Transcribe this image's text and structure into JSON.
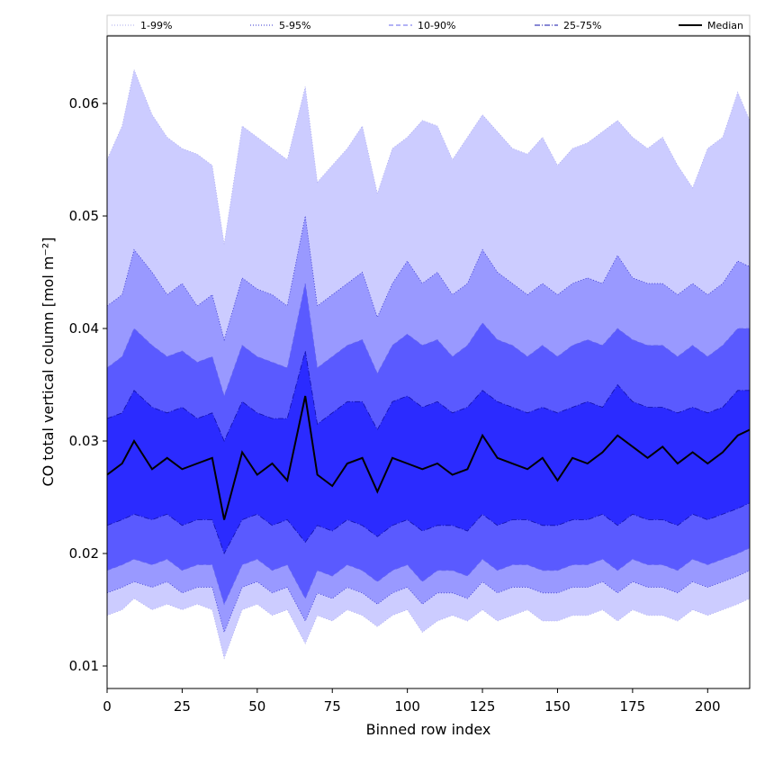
{
  "chart_data": {
    "type": "area",
    "xlabel": "Binned row index",
    "ylabel": "CO total vertical column [mol m⁻²]",
    "xlim": [
      0,
      214
    ],
    "ylim": [
      0.008,
      0.066
    ],
    "xticks": [
      0,
      25,
      50,
      75,
      100,
      125,
      150,
      175,
      200
    ],
    "yticks": [
      0.01,
      0.02,
      0.03,
      0.04,
      0.05,
      0.06
    ],
    "ytick_labels": [
      "0.01",
      "0.02",
      "0.03",
      "0.04",
      "0.05",
      "0.06"
    ],
    "grid": false,
    "legend_position": "top, spanning full width",
    "legend": [
      {
        "label": "1-99%",
        "style": "dotted",
        "color": "#aaaaee"
      },
      {
        "label": "5-95%",
        "style": "dotted",
        "color": "#3333cc"
      },
      {
        "label": "10-90%",
        "style": "dashed",
        "color": "#6666ee"
      },
      {
        "label": "25-75%",
        "style": "dashdot",
        "color": "#1111aa"
      },
      {
        "label": "Median",
        "style": "solid",
        "color": "#000000"
      }
    ],
    "band_colors": [
      "#ccccff",
      "#9999ff",
      "#5a5aff",
      "#2b2bff"
    ],
    "median_color": "#000000",
    "x_samples": [
      0,
      5,
      9,
      15,
      20,
      25,
      30,
      35,
      39,
      45,
      50,
      55,
      60,
      66,
      70,
      75,
      80,
      85,
      90,
      95,
      100,
      105,
      110,
      115,
      120,
      125,
      130,
      135,
      140,
      145,
      150,
      155,
      160,
      165,
      170,
      175,
      180,
      185,
      190,
      195,
      200,
      205,
      210,
      214
    ],
    "series": [
      {
        "name": "1-99%",
        "lower": [
          0.0145,
          0.015,
          0.016,
          0.015,
          0.0155,
          0.015,
          0.0155,
          0.015,
          0.0107,
          0.015,
          0.0155,
          0.0145,
          0.015,
          0.012,
          0.0145,
          0.014,
          0.015,
          0.0145,
          0.0135,
          0.0145,
          0.015,
          0.013,
          0.014,
          0.0145,
          0.014,
          0.015,
          0.014,
          0.0145,
          0.015,
          0.014,
          0.014,
          0.0145,
          0.0145,
          0.015,
          0.014,
          0.015,
          0.0145,
          0.0145,
          0.014,
          0.015,
          0.0145,
          0.015,
          0.0155,
          0.016
        ],
        "upper": [
          0.055,
          0.058,
          0.063,
          0.059,
          0.057,
          0.056,
          0.0555,
          0.0545,
          0.0475,
          0.058,
          0.057,
          0.056,
          0.055,
          0.0615,
          0.053,
          0.0545,
          0.056,
          0.058,
          0.052,
          0.056,
          0.057,
          0.0585,
          0.058,
          0.055,
          0.057,
          0.059,
          0.0575,
          0.056,
          0.0555,
          0.057,
          0.0545,
          0.056,
          0.0565,
          0.0575,
          0.0585,
          0.057,
          0.056,
          0.057,
          0.0545,
          0.0525,
          0.056,
          0.057,
          0.061,
          0.0585
        ]
      },
      {
        "name": "5-95%",
        "lower": [
          0.0165,
          0.017,
          0.0175,
          0.017,
          0.0175,
          0.0165,
          0.017,
          0.017,
          0.013,
          0.017,
          0.0175,
          0.0165,
          0.017,
          0.014,
          0.0165,
          0.016,
          0.017,
          0.0165,
          0.0155,
          0.0165,
          0.017,
          0.0155,
          0.0165,
          0.0165,
          0.016,
          0.0175,
          0.0165,
          0.017,
          0.017,
          0.0165,
          0.0165,
          0.017,
          0.017,
          0.0175,
          0.0165,
          0.0175,
          0.017,
          0.017,
          0.0165,
          0.0175,
          0.017,
          0.0175,
          0.018,
          0.0185
        ],
        "upper": [
          0.042,
          0.043,
          0.047,
          0.045,
          0.043,
          0.044,
          0.042,
          0.043,
          0.039,
          0.0445,
          0.0435,
          0.043,
          0.042,
          0.05,
          0.042,
          0.043,
          0.044,
          0.045,
          0.041,
          0.044,
          0.046,
          0.044,
          0.045,
          0.043,
          0.044,
          0.047,
          0.045,
          0.044,
          0.043,
          0.044,
          0.043,
          0.044,
          0.0445,
          0.044,
          0.0465,
          0.0445,
          0.044,
          0.044,
          0.043,
          0.044,
          0.043,
          0.044,
          0.046,
          0.0455
        ]
      },
      {
        "name": "10-90%",
        "lower": [
          0.0185,
          0.019,
          0.0195,
          0.019,
          0.0195,
          0.0185,
          0.019,
          0.019,
          0.0155,
          0.019,
          0.0195,
          0.0185,
          0.019,
          0.016,
          0.0185,
          0.018,
          0.019,
          0.0185,
          0.0175,
          0.0185,
          0.019,
          0.0175,
          0.0185,
          0.0185,
          0.018,
          0.0195,
          0.0185,
          0.019,
          0.019,
          0.0185,
          0.0185,
          0.019,
          0.019,
          0.0195,
          0.0185,
          0.0195,
          0.019,
          0.019,
          0.0185,
          0.0195,
          0.019,
          0.0195,
          0.02,
          0.0205
        ],
        "upper": [
          0.0365,
          0.0375,
          0.04,
          0.0385,
          0.0375,
          0.038,
          0.037,
          0.0375,
          0.034,
          0.0385,
          0.0375,
          0.037,
          0.0365,
          0.044,
          0.0365,
          0.0375,
          0.0385,
          0.039,
          0.036,
          0.0385,
          0.0395,
          0.0385,
          0.039,
          0.0375,
          0.0385,
          0.0405,
          0.039,
          0.0385,
          0.0375,
          0.0385,
          0.0375,
          0.0385,
          0.039,
          0.0385,
          0.04,
          0.039,
          0.0385,
          0.0385,
          0.0375,
          0.0385,
          0.0375,
          0.0385,
          0.04,
          0.04
        ]
      },
      {
        "name": "25-75%",
        "lower": [
          0.0225,
          0.023,
          0.0235,
          0.023,
          0.0235,
          0.0225,
          0.023,
          0.023,
          0.02,
          0.023,
          0.0235,
          0.0225,
          0.023,
          0.021,
          0.0225,
          0.022,
          0.023,
          0.0225,
          0.0215,
          0.0225,
          0.023,
          0.022,
          0.0225,
          0.0225,
          0.022,
          0.0235,
          0.0225,
          0.023,
          0.023,
          0.0225,
          0.0225,
          0.023,
          0.023,
          0.0235,
          0.0225,
          0.0235,
          0.023,
          0.023,
          0.0225,
          0.0235,
          0.023,
          0.0235,
          0.024,
          0.0245
        ],
        "upper": [
          0.032,
          0.0325,
          0.0345,
          0.033,
          0.0325,
          0.033,
          0.032,
          0.0325,
          0.03,
          0.0335,
          0.0325,
          0.032,
          0.032,
          0.038,
          0.0315,
          0.0325,
          0.0335,
          0.0335,
          0.031,
          0.0335,
          0.034,
          0.033,
          0.0335,
          0.0325,
          0.033,
          0.0345,
          0.0335,
          0.033,
          0.0325,
          0.033,
          0.0325,
          0.033,
          0.0335,
          0.033,
          0.035,
          0.0335,
          0.033,
          0.033,
          0.0325,
          0.033,
          0.0325,
          0.033,
          0.0345,
          0.0345
        ]
      },
      {
        "name": "Median",
        "values": [
          0.027,
          0.028,
          0.03,
          0.0275,
          0.0285,
          0.0275,
          0.028,
          0.0285,
          0.023,
          0.029,
          0.027,
          0.028,
          0.0265,
          0.034,
          0.027,
          0.026,
          0.028,
          0.0285,
          0.0255,
          0.0285,
          0.028,
          0.0275,
          0.028,
          0.027,
          0.0275,
          0.0305,
          0.0285,
          0.028,
          0.0275,
          0.0285,
          0.0265,
          0.0285,
          0.028,
          0.029,
          0.0305,
          0.0295,
          0.0285,
          0.0295,
          0.028,
          0.029,
          0.028,
          0.029,
          0.0305,
          0.031
        ]
      }
    ]
  }
}
